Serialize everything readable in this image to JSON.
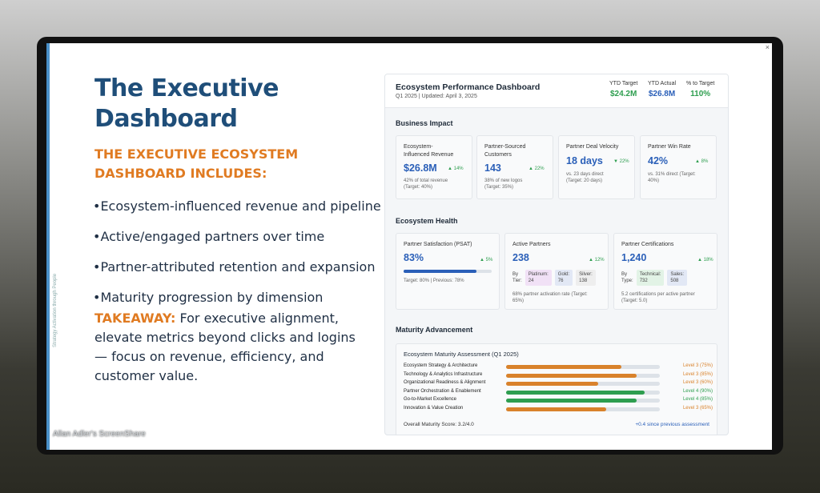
{
  "slide": {
    "title": "The Executive Dashboard",
    "subtitle": "THE EXECUTIVE ECOSYSTEM DASHBOARD INCLUDES:",
    "bullets": [
      "Ecosystem-influenced revenue and pipeline",
      "Active/engaged partners over time",
      "Partner-attributed retention and expansion",
      "Maturity progression by dimension"
    ],
    "takeaway_label": "TAKEAWAY:",
    "takeaway_text": " For executive alignment, elevate metrics beyond clicks and logins — focus on revenue, efficiency, and customer value.",
    "vertical_caption": "Strategy Activation through People",
    "close_glyph": "×"
  },
  "watermark": "Allan Adler's ScreenShare",
  "dashboard": {
    "title": "Ecosystem Performance Dashboard",
    "subtitle": "Q1 2025 | Updated: April 3, 2025",
    "ytd_target_label": "YTD Target",
    "ytd_target_value": "$24.2M",
    "ytd_actual_label": "YTD Actual",
    "ytd_actual_value": "$26.8M",
    "pct_label": "% to Target",
    "pct_value": "110%",
    "business_impact": {
      "label": "Business Impact",
      "cards": [
        {
          "title": "Ecosystem-\nInfluenced Revenue",
          "value": "$26.8M",
          "delta": "▲ 14%",
          "note": "42% of total revenue\n(Target: 40%)"
        },
        {
          "title": "Partner-Sourced\nCustomers",
          "value": "143",
          "delta": "▲ 22%",
          "note": "38% of new logos\n(Target: 35%)"
        },
        {
          "title": "Partner Deal Velocity",
          "value": "18 days",
          "delta": "▼ 22%",
          "note": "vs. 23 days direct\n(Target: 20 days)"
        },
        {
          "title": "Partner Win Rate",
          "value": "42%",
          "delta": "▲ 8%",
          "note": "vs. 31% direct (Target:\n40%)"
        }
      ]
    },
    "ecosystem_health": {
      "label": "Ecosystem Health",
      "psat": {
        "title": "Partner Satisfaction (PSAT)",
        "value": "83%",
        "delta": "▲ 5%",
        "bar_fraction": 0.83,
        "note": "Target: 80% | Previous: 78%"
      },
      "active": {
        "title": "Active Partners",
        "value": "238",
        "delta": "▲ 12%",
        "by_label": "By\nTier:",
        "tiers": [
          "Platinum:\n24",
          "Gold:\n76",
          "Silver:\n138"
        ],
        "note": "68% partner activation rate (Target:\n65%)"
      },
      "certs": {
        "title": "Partner Certifications",
        "value": "1,240",
        "delta": "▲ 18%",
        "by_label": "By\nType:",
        "types": [
          "Technical:\n732",
          "Sales:\n508"
        ],
        "note": "5.2 certifications per active partner\n(Target: 5.0)"
      }
    },
    "maturity": {
      "label": "Maturity Advancement",
      "box_title": "Ecosystem Maturity Assessment (Q1 2025)",
      "rows": [
        {
          "name": "Ecosystem Strategy & Architecture",
          "level": "Level 3 (75%)",
          "fraction": 0.75,
          "color": "#d9822b"
        },
        {
          "name": "Technology & Analytics Infrastructure",
          "level": "Level 3 (85%)",
          "fraction": 0.85,
          "color": "#d9822b"
        },
        {
          "name": "Organizational Readiness & Alignment",
          "level": "Level 3 (60%)",
          "fraction": 0.6,
          "color": "#d9822b"
        },
        {
          "name": "Partner Orchestration & Enablement",
          "level": "Level 4 (90%)",
          "fraction": 0.9,
          "color": "#2e9e4f"
        },
        {
          "name": "Go-to-Market Excellence",
          "level": "Level 4 (85%)",
          "fraction": 0.85,
          "color": "#2e9e4f"
        },
        {
          "name": "Innovation & Value Creation",
          "level": "Level 3 (65%)",
          "fraction": 0.65,
          "color": "#d9822b"
        }
      ],
      "overall": "Overall Maturity Score: 3.2/4.0",
      "since": "+0.4 since previous assessment"
    }
  }
}
